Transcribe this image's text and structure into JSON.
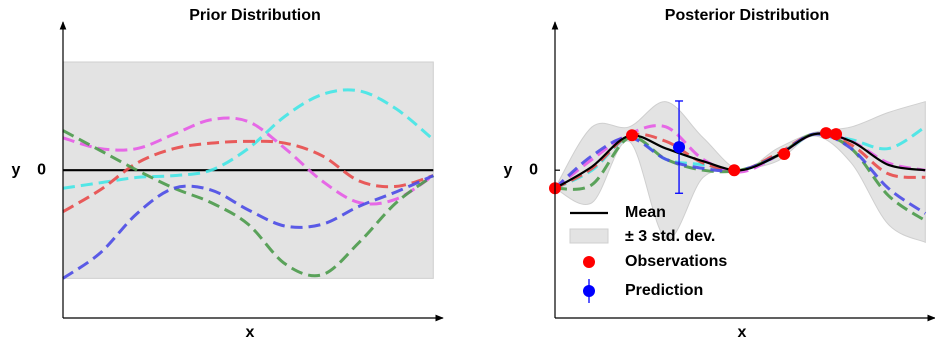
{
  "chart_data": [
    {
      "type": "line",
      "title": "Prior Distribution",
      "xlabel": "x",
      "ylabel": "y",
      "xlim": [
        0,
        10.1
      ],
      "ylim": [
        -4.1,
        4.0
      ],
      "yticks": [
        0
      ],
      "x": [
        0,
        1,
        2,
        3,
        4,
        5,
        6,
        7,
        8,
        9,
        10
      ],
      "band": {
        "color": "#e3e3e3",
        "upper": [
          3,
          3,
          3,
          3,
          3,
          3,
          3,
          3,
          3,
          3,
          3
        ],
        "lower": [
          -3,
          -3,
          -3,
          -3,
          -3,
          -3,
          -3,
          -3,
          -3,
          -3,
          -3
        ]
      },
      "series": [
        {
          "color": "#000000",
          "dash": false,
          "values": [
            0,
            0,
            0,
            0,
            0,
            0,
            0,
            0,
            0,
            0,
            0
          ]
        },
        {
          "color": "#41e6e6",
          "dash": true,
          "values": [
            -0.5,
            -0.35,
            -0.2,
            -0.15,
            0,
            0.6,
            1.5,
            2.1,
            2.2,
            1.7,
            0.85
          ]
        },
        {
          "color": "#e65ae6",
          "dash": true,
          "values": [
            0.9,
            0.6,
            0.6,
            1.0,
            1.4,
            1.35,
            0.6,
            -0.3,
            -0.9,
            -0.8,
            -0.15
          ]
        },
        {
          "color": "#e84a4a",
          "dash": true,
          "values": [
            -1.15,
            -0.55,
            0.2,
            0.6,
            0.75,
            0.8,
            0.75,
            0.4,
            -0.3,
            -0.45,
            -0.15
          ]
        },
        {
          "color": "#4a9a4a",
          "dash": true,
          "values": [
            1.1,
            0.55,
            0,
            -0.5,
            -0.9,
            -1.5,
            -2.6,
            -2.9,
            -2.0,
            -0.9,
            -0.15
          ]
        },
        {
          "color": "#4a4ae6",
          "dash": true,
          "values": [
            -3,
            -2.3,
            -1.2,
            -0.5,
            -0.55,
            -1.1,
            -1.55,
            -1.5,
            -1.0,
            -0.6,
            -0.15
          ]
        }
      ]
    },
    {
      "type": "line",
      "title": "Posterior Distribution",
      "xlabel": "x",
      "ylabel": "y",
      "xlim": [
        0,
        10.1
      ],
      "ylim": [
        -4.1,
        4.0
      ],
      "yticks": [
        0
      ],
      "legend": "lower left",
      "x": [
        0,
        1,
        2,
        3,
        4,
        5,
        6,
        7,
        8,
        9,
        10
      ],
      "band": {
        "name": "± 3 std. dev.",
        "color": "#e3e3e3",
        "upper": [
          -0.5,
          1.2,
          1.2,
          1.9,
          0.9,
          0,
          0.6,
          1.05,
          1.2,
          1.6,
          1.9
        ],
        "lower": [
          -0.5,
          -0.9,
          0.8,
          -1.9,
          -0.2,
          0,
          0.25,
          0.95,
          0.2,
          -1.5,
          -2.0
        ]
      },
      "series": [
        {
          "color": "#41e6e6",
          "dash": true,
          "values": [
            -0.5,
            0.0,
            0.9,
            0.3,
            0.15,
            0,
            0.4,
            1.0,
            0.85,
            0.6,
            1.2
          ]
        },
        {
          "color": "#e65ae6",
          "dash": true,
          "values": [
            -0.5,
            0.3,
            1.0,
            1.2,
            0.3,
            -0.05,
            0.4,
            1.0,
            0.8,
            0.2,
            0
          ]
        },
        {
          "color": "#e84a4a",
          "dash": true,
          "values": [
            -0.5,
            0.05,
            0.95,
            0.8,
            0.2,
            0,
            0.45,
            1.0,
            0.7,
            -0.1,
            -0.2
          ]
        },
        {
          "color": "#4a9a4a",
          "dash": true,
          "values": [
            -0.5,
            -0.4,
            0.9,
            0.3,
            0.0,
            0,
            0.4,
            1.0,
            0.6,
            -0.7,
            -1.4
          ]
        },
        {
          "color": "#4a4ae6",
          "dash": true,
          "values": [
            -0.5,
            0.4,
            0.9,
            0.3,
            0.05,
            0,
            0.4,
            1.0,
            0.6,
            -0.5,
            -1.2
          ]
        },
        {
          "name": "Mean",
          "color": "#000000",
          "dash": false,
          "values": [
            -0.5,
            0.1,
            0.95,
            0.6,
            0.25,
            0,
            0.4,
            1.0,
            0.8,
            0.15,
            0
          ]
        }
      ],
      "observations": {
        "name": "Observations",
        "color": "#ff0000",
        "x": [
          0,
          2.08,
          4.84,
          6.19,
          7.32,
          7.59
        ],
        "y": [
          -0.5,
          0.97,
          0,
          0.45,
          1.03,
          1.0
        ]
      },
      "prediction": {
        "name": "Prediction",
        "color": "#0000ff",
        "x": 3.35,
        "y": 0.64,
        "error": 1.28
      }
    }
  ]
}
